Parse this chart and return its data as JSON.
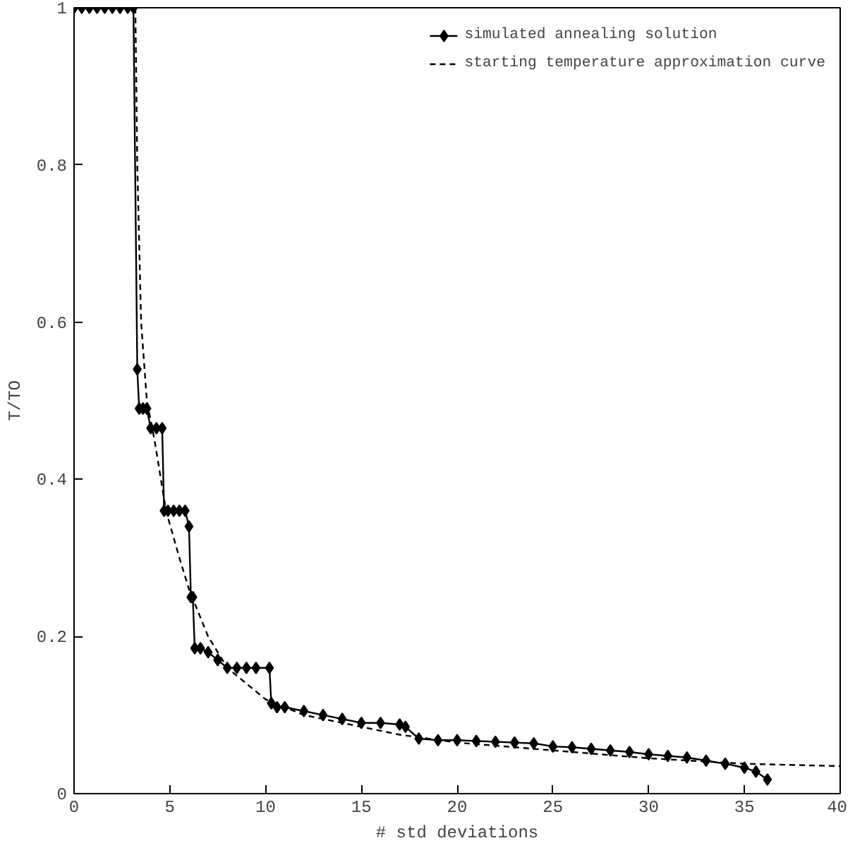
{
  "chart_data": {
    "type": "line",
    "xlabel": "# std deviations",
    "ylabel": "T/TO",
    "xlim": [
      0,
      40
    ],
    "ylim": [
      0,
      1
    ],
    "xticks": [
      0,
      5,
      10,
      15,
      20,
      25,
      30,
      35,
      40
    ],
    "yticks": [
      0,
      0.2,
      0.4,
      0.6,
      0.8,
      1
    ],
    "grid": false,
    "legend": "top right",
    "series": [
      {
        "name": "simulated annealing solution",
        "color": "#000000",
        "marker": "diamond",
        "line_style": "solid",
        "x": [
          0,
          0.4,
          0.8,
          1.2,
          1.6,
          2.0,
          2.4,
          2.8,
          3.1,
          3.3,
          3.4,
          3.6,
          3.8,
          4.0,
          4.3,
          4.6,
          4.7,
          4.9,
          5.2,
          5.5,
          5.8,
          6.0,
          6.1,
          6.2,
          6.3,
          6.6,
          7.0,
          7.5,
          8.0,
          8.5,
          9.0,
          9.5,
          10.2,
          10.3,
          10.6,
          11.0,
          12.0,
          13.0,
          14.0,
          15.0,
          16.0,
          17.0,
          17.3,
          18.0,
          19.0,
          20.0,
          21.0,
          22.0,
          23.0,
          24.0,
          25.0,
          26.0,
          27.0,
          28.0,
          29.0,
          30.0,
          31.0,
          32.0,
          33.0,
          34.0,
          35.0,
          35.6,
          36.2
        ],
        "values": [
          1,
          1,
          1,
          1,
          1,
          1,
          1,
          1,
          1,
          0.54,
          0.49,
          0.49,
          0.49,
          0.465,
          0.465,
          0.465,
          0.36,
          0.36,
          0.36,
          0.36,
          0.36,
          0.34,
          0.25,
          0.25,
          0.185,
          0.185,
          0.18,
          0.17,
          0.16,
          0.16,
          0.16,
          0.16,
          0.16,
          0.115,
          0.11,
          0.11,
          0.105,
          0.1,
          0.095,
          0.09,
          0.09,
          0.088,
          0.085,
          0.07,
          0.068,
          0.068,
          0.067,
          0.066,
          0.065,
          0.064,
          0.06,
          0.059,
          0.057,
          0.055,
          0.053,
          0.05,
          0.048,
          0.046,
          0.042,
          0.038,
          0.033,
          0.028,
          0.018
        ]
      },
      {
        "name": "starting temperature approximation curve",
        "color": "#000000",
        "marker": "none",
        "line_style": "dashed",
        "x": [
          3.2,
          3.3,
          3.5,
          3.8,
          4.2,
          4.8,
          5.5,
          6.0,
          7.0,
          8.0,
          9.0,
          10.0,
          12.0,
          15.0,
          17.0,
          20.0,
          25.0,
          30.0,
          35.0,
          40.0
        ],
        "values": [
          1,
          0.8,
          0.6,
          0.5,
          0.45,
          0.36,
          0.3,
          0.26,
          0.2,
          0.16,
          0.14,
          0.12,
          0.1,
          0.085,
          0.075,
          0.065,
          0.055,
          0.045,
          0.038,
          0.035
        ]
      }
    ]
  }
}
